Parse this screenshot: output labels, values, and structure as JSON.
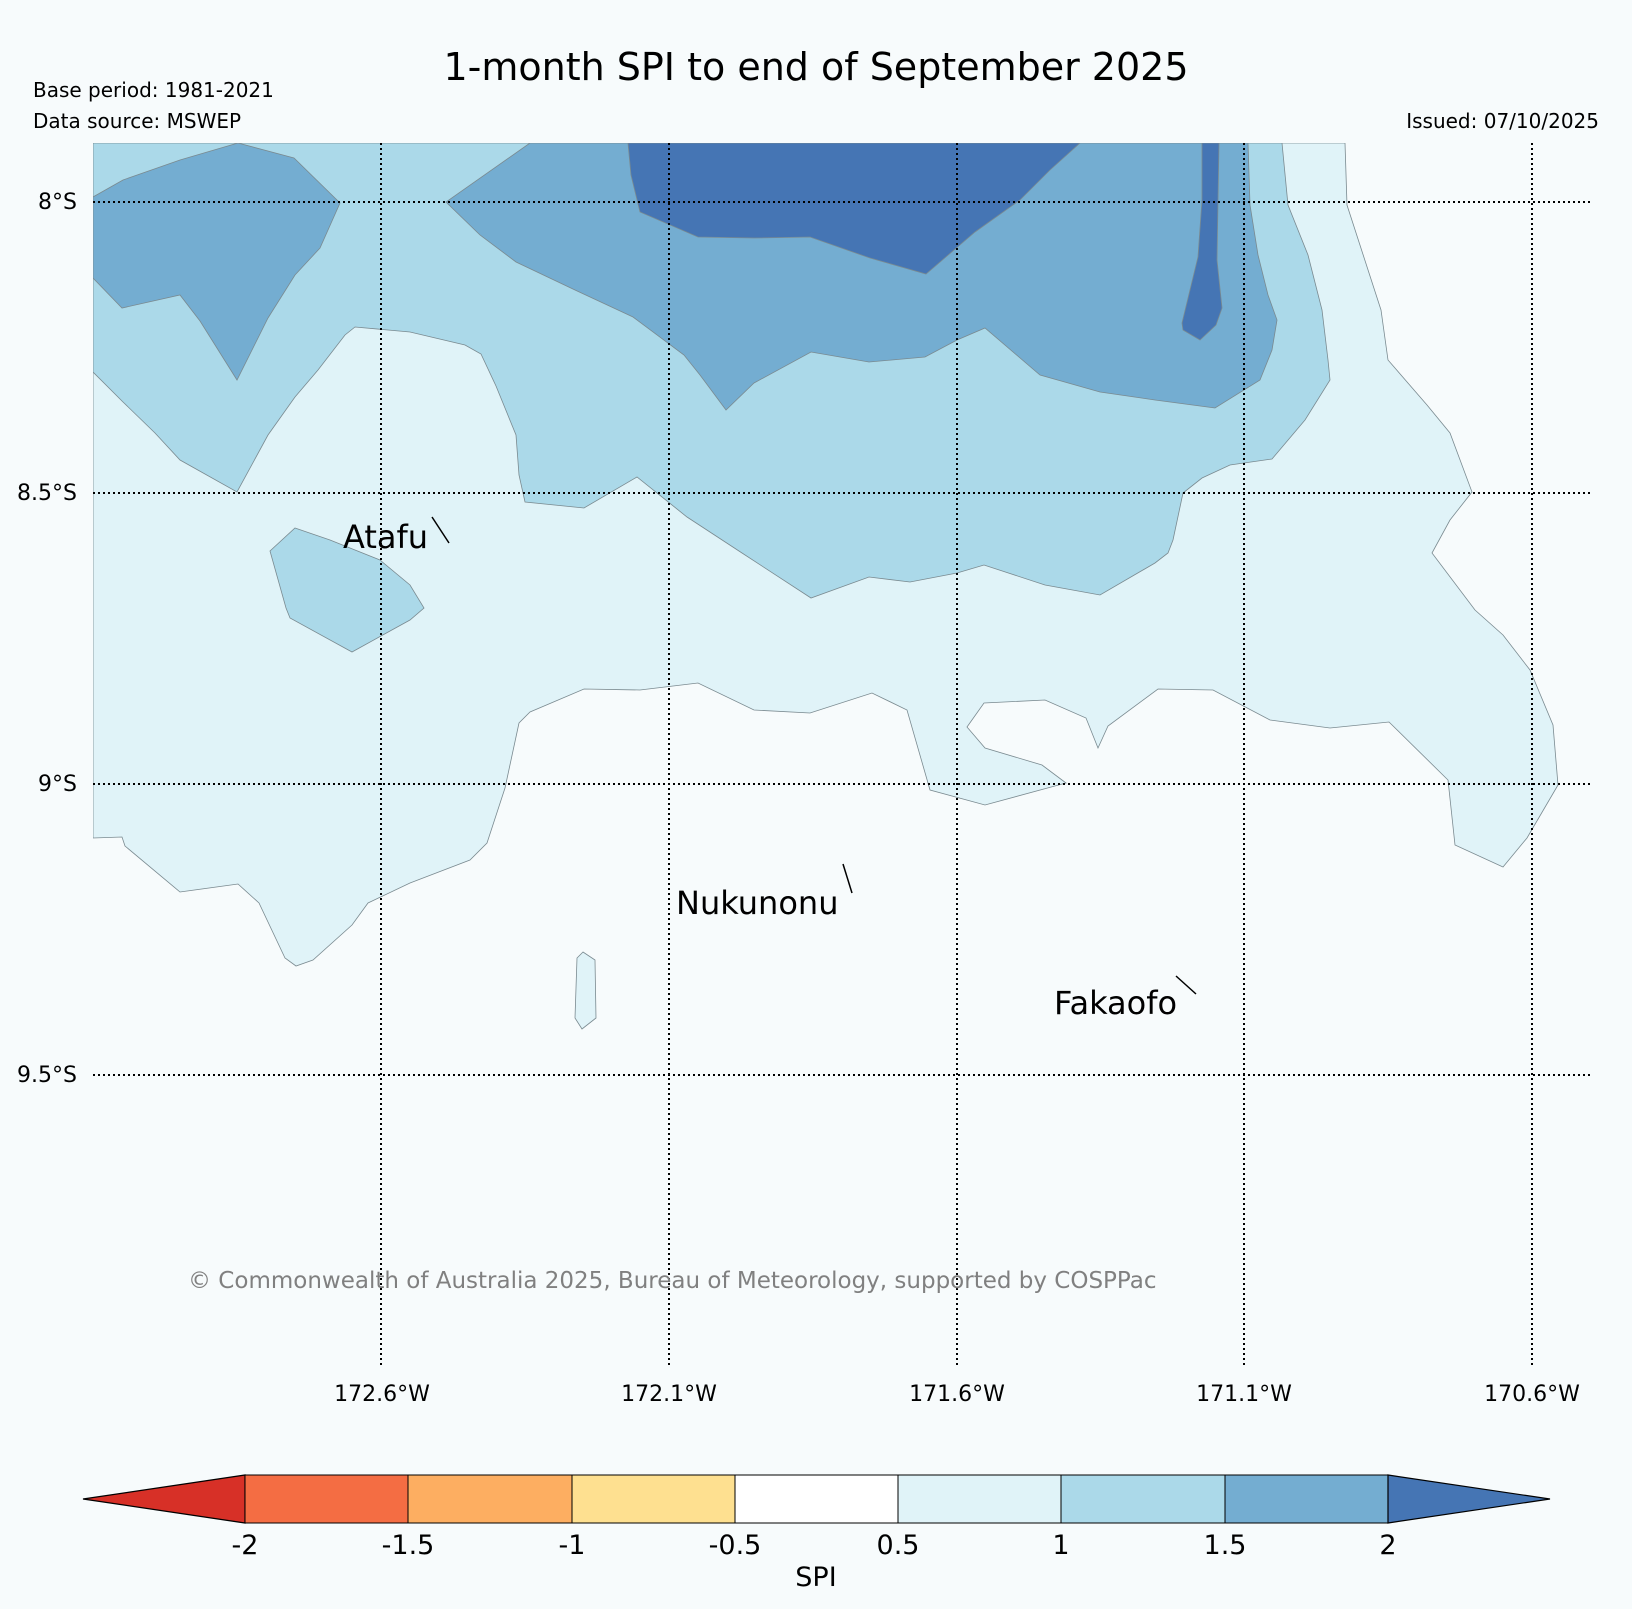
{
  "title": "1-month SPI to end of September 2025",
  "base_period": "Base period: 1981-2021",
  "data_source": "Data source: MSWEP",
  "issued": "Issued: 07/10/2025",
  "copyright": "© Commonwealth of Australia 2025, Bureau of Meteorology, supported by COSPPac",
  "lat_labels": [
    "8°S",
    "8.5°S",
    "9°S",
    "9.5°S"
  ],
  "lon_labels": [
    "172.6°W",
    "172.1°W",
    "171.6°W",
    "171.1°W",
    "170.6°W"
  ],
  "places": [
    {
      "name": "Atafu"
    },
    {
      "name": "Nukunonu"
    },
    {
      "name": "Fakaofo"
    }
  ],
  "colorbar": {
    "label": "SPI",
    "ticks": [
      "-2",
      "-1.5",
      "-1",
      "-0.5",
      "0.5",
      "1",
      "1.5",
      "2"
    ],
    "colors": {
      "lt_-2": "#d73027",
      "-2_-1.5": "#f46d43",
      "-1.5_-1": "#fdae61",
      "-1_-0.5": "#fee090",
      "-0.5_0.5": "#ffffff",
      "0.5_1": "#e0f3f8",
      "1_1.5": "#abd9e9",
      "1.5_2": "#74add1",
      "gt_2": "#4575b4"
    }
  }
}
